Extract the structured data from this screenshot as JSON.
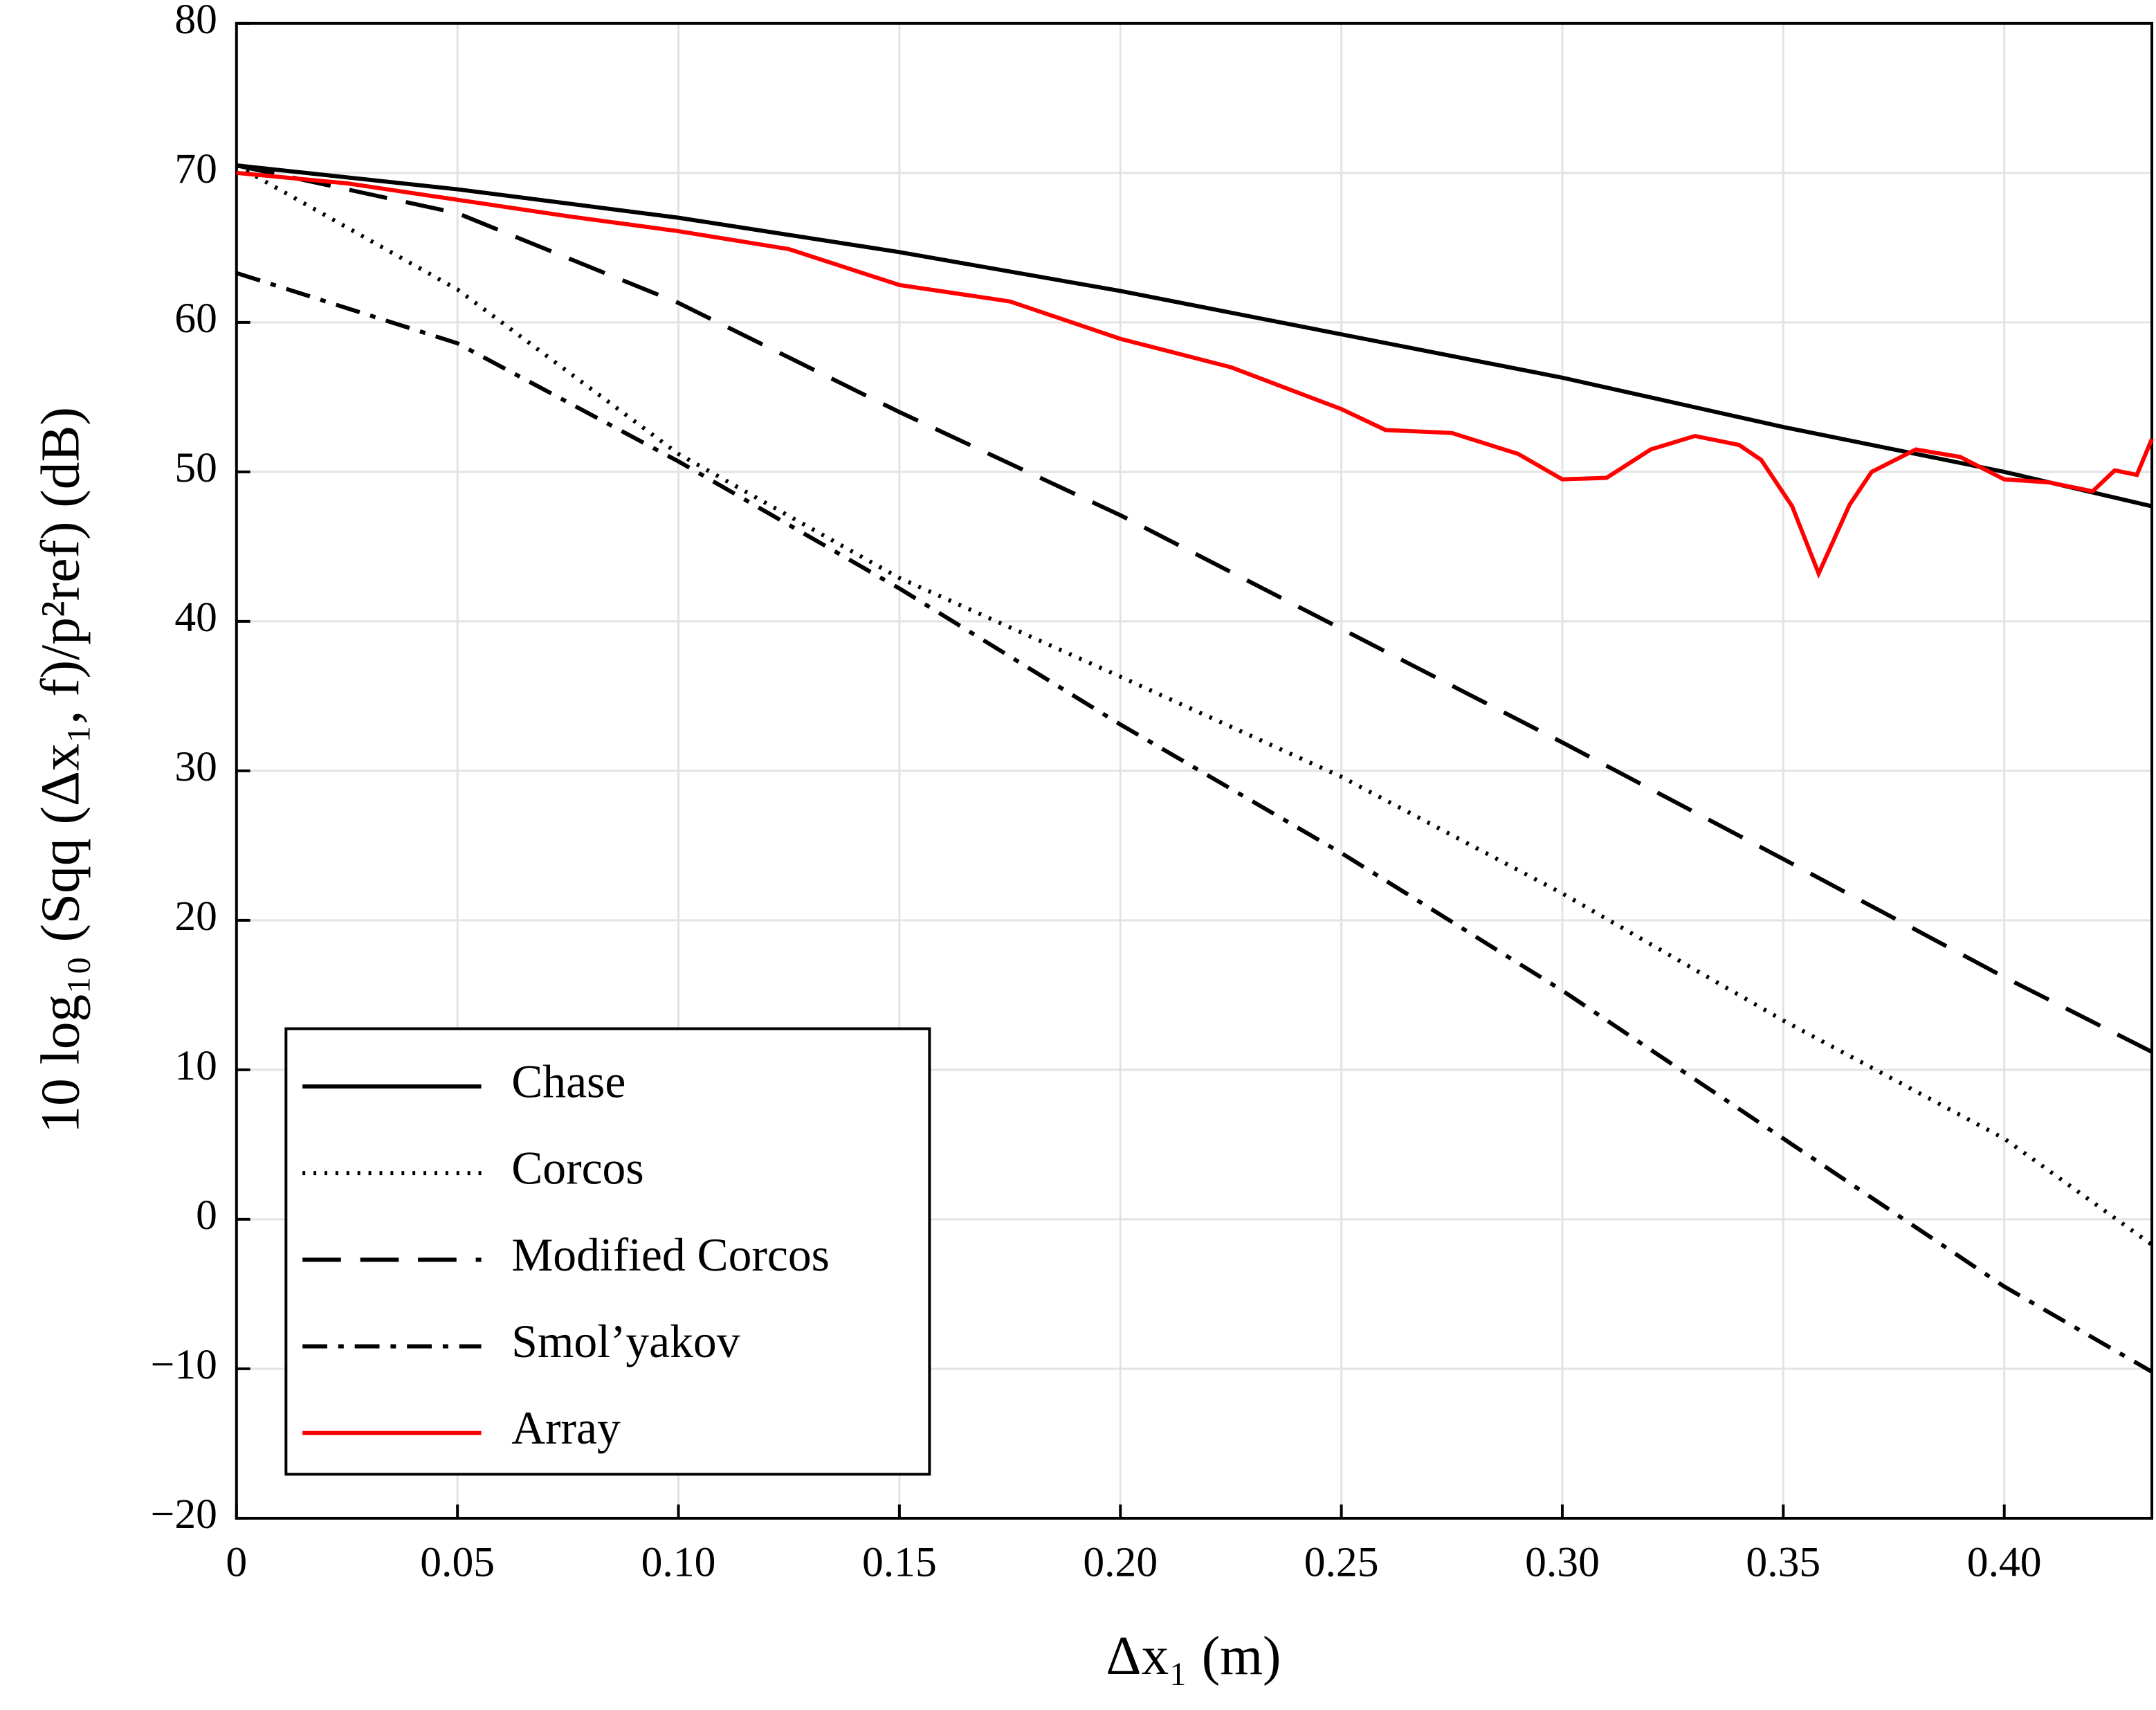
{
  "chart_data": {
    "type": "line",
    "xlabel": "Δx₁ (m)",
    "ylabel": "10 log₁₀ (Sqq (Δx₁, f)/p²ref) (dB)",
    "xlim": [
      0,
      0.4334
    ],
    "ylim": [
      -20,
      80
    ],
    "xticks": [
      0,
      0.05,
      {
        "value": 0.1,
        "label": "0.10"
      },
      0.15,
      {
        "value": 0.2,
        "label": "0.20"
      },
      0.25,
      {
        "value": 0.3,
        "label": "0.30"
      },
      0.35,
      {
        "value": 0.4,
        "label": "0.40"
      }
    ],
    "yticks": [
      {
        "value": -20,
        "label": "−20"
      },
      {
        "value": -10,
        "label": "−10"
      },
      0,
      10,
      20,
      30,
      40,
      50,
      60,
      70,
      80
    ],
    "grid": true,
    "legend": "lower left",
    "series": [
      {
        "name": "Chase",
        "color": "#000000",
        "style": "solid",
        "x": [
          0,
          0.05,
          0.1,
          0.15,
          0.2,
          0.25,
          0.3,
          0.35,
          0.4,
          0.4334
        ],
        "values": [
          70.5,
          68.9,
          67.0,
          64.7,
          62.1,
          59.2,
          56.3,
          53.0,
          50.0,
          47.7
        ]
      },
      {
        "name": "Corcos",
        "color": "#000000",
        "style": "dotted",
        "x": [
          0,
          0.05,
          0.1,
          0.15,
          0.2,
          0.25,
          0.3,
          0.35,
          0.4,
          0.4334
        ],
        "values": [
          70.5,
          62.2,
          51.2,
          42.9,
          36.3,
          29.6,
          21.8,
          13.3,
          5.4,
          -1.7
        ]
      },
      {
        "name": "Modified Corcos",
        "color": "#000000",
        "style": "dashed",
        "x": [
          0,
          0.05,
          0.1,
          0.15,
          0.2,
          0.25,
          0.3,
          0.35,
          0.4,
          0.4334
        ],
        "values": [
          70.5,
          67.3,
          61.3,
          54.0,
          47.1,
          39.5,
          31.9,
          24.1,
          16.2,
          11.2
        ]
      },
      {
        "name": "Smol’yakov",
        "color": "#000000",
        "style": "dashdot",
        "x": [
          0,
          0.05,
          0.1,
          0.15,
          0.2,
          0.25,
          0.3,
          0.35,
          0.4,
          0.4334
        ],
        "values": [
          63.3,
          58.6,
          50.7,
          42.2,
          33.1,
          24.5,
          15.3,
          5.4,
          -4.5,
          -10.2
        ]
      },
      {
        "name": "Array",
        "color": "#ff0000",
        "style": "solid",
        "x": [
          0,
          0.025,
          0.05,
          0.075,
          0.1,
          0.125,
          0.15,
          0.175,
          0.2,
          0.225,
          0.25,
          0.26,
          0.275,
          0.29,
          0.3,
          0.31,
          0.32,
          0.33,
          0.34,
          0.345,
          0.352,
          0.358,
          0.365,
          0.37,
          0.38,
          0.39,
          0.4,
          0.41,
          0.42,
          0.425,
          0.43,
          0.4334
        ],
        "values": [
          70.0,
          69.3,
          68.2,
          67.1,
          66.1,
          64.9,
          62.5,
          61.4,
          58.9,
          57.0,
          54.2,
          52.8,
          52.6,
          51.2,
          49.5,
          49.6,
          51.5,
          52.4,
          51.8,
          50.8,
          47.7,
          43.2,
          47.8,
          50.0,
          51.5,
          51.0,
          49.5,
          49.3,
          48.7,
          50.1,
          49.8,
          52.2
        ]
      }
    ]
  }
}
